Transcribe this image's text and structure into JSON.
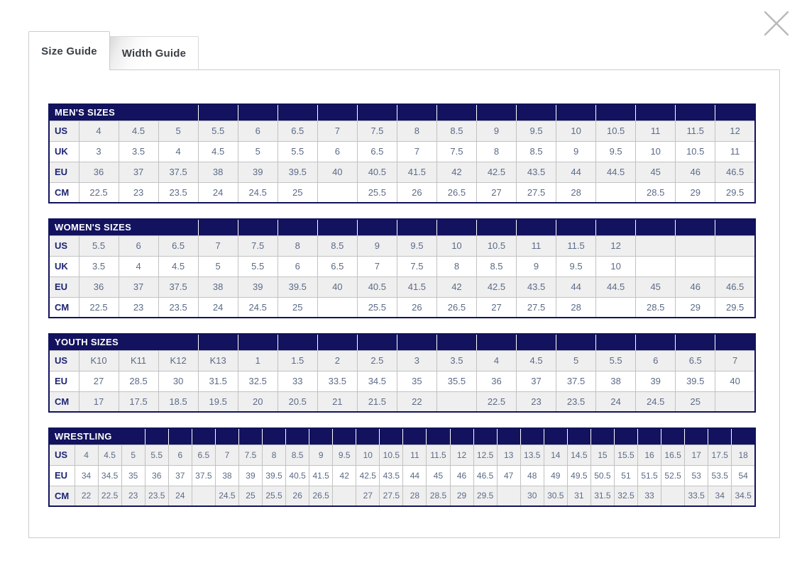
{
  "tabs": [
    {
      "label": "Size Guide",
      "active": true
    },
    {
      "label": "Width Guide",
      "active": false
    }
  ],
  "tables": [
    {
      "id": "mens-sizes",
      "title": "MEN'S SIZES",
      "title_colspan": 4,
      "rows": [
        {
          "label": "US",
          "values": [
            "4",
            "4.5",
            "5",
            "5.5",
            "6",
            "6.5",
            "7",
            "7.5",
            "8",
            "8.5",
            "9",
            "9.5",
            "10",
            "10.5",
            "11",
            "11.5",
            "12"
          ]
        },
        {
          "label": "UK",
          "values": [
            "3",
            "3.5",
            "4",
            "4.5",
            "5",
            "5.5",
            "6",
            "6.5",
            "7",
            "7.5",
            "8",
            "8.5",
            "9",
            "9.5",
            "10",
            "10.5",
            "11"
          ]
        },
        {
          "label": "EU",
          "values": [
            "36",
            "37",
            "37.5",
            "38",
            "39",
            "39.5",
            "40",
            "40.5",
            "41.5",
            "42",
            "42.5",
            "43.5",
            "44",
            "44.5",
            "45",
            "46",
            "46.5"
          ]
        },
        {
          "label": "CM",
          "values": [
            "22.5",
            "23",
            "23.5",
            "24",
            "24.5",
            "25",
            "",
            "25.5",
            "26",
            "26.5",
            "27",
            "27.5",
            "28",
            "",
            "28.5",
            "29",
            "29.5"
          ]
        }
      ]
    },
    {
      "id": "womens-sizes",
      "title": "WOMEN'S SIZES",
      "title_colspan": 4,
      "rows": [
        {
          "label": "US",
          "values": [
            "5.5",
            "6",
            "6.5",
            "7",
            "7.5",
            "8",
            "8.5",
            "9",
            "9.5",
            "10",
            "10.5",
            "11",
            "11.5",
            "12",
            "",
            "",
            ""
          ]
        },
        {
          "label": "UK",
          "values": [
            "3.5",
            "4",
            "4.5",
            "5",
            "5.5",
            "6",
            "6.5",
            "7",
            "7.5",
            "8",
            "8.5",
            "9",
            "9.5",
            "10",
            "",
            "",
            ""
          ]
        },
        {
          "label": "EU",
          "values": [
            "36",
            "37",
            "37.5",
            "38",
            "39",
            "39.5",
            "40",
            "40.5",
            "41.5",
            "42",
            "42.5",
            "43.5",
            "44",
            "44.5",
            "45",
            "46",
            "46.5"
          ]
        },
        {
          "label": "CM",
          "values": [
            "22.5",
            "23",
            "23.5",
            "24",
            "24.5",
            "25",
            "",
            "25.5",
            "26",
            "26.5",
            "27",
            "27.5",
            "28",
            "",
            "28.5",
            "29",
            "29.5"
          ]
        }
      ]
    },
    {
      "id": "youth-sizes",
      "title": "YOUTH SIZES",
      "title_colspan": 4,
      "rows": [
        {
          "label": "US",
          "values": [
            "K10",
            "K11",
            "K12",
            "K13",
            "1",
            "1.5",
            "2",
            "2.5",
            "3",
            "3.5",
            "4",
            "4.5",
            "5",
            "5.5",
            "6",
            "6.5",
            "7"
          ]
        },
        {
          "label": "EU",
          "values": [
            "27",
            "28.5",
            "30",
            "31.5",
            "32.5",
            "33",
            "33.5",
            "34.5",
            "35",
            "35.5",
            "36",
            "37",
            "37.5",
            "38",
            "39",
            "39.5",
            "40"
          ]
        },
        {
          "label": "CM",
          "values": [
            "17",
            "17.5",
            "18.5",
            "19.5",
            "20",
            "20.5",
            "21",
            "21.5",
            "22",
            "",
            "22.5",
            "23",
            "23.5",
            "24",
            "24.5",
            "25",
            ""
          ]
        }
      ]
    },
    {
      "id": "wrestling",
      "title": "WRESTLING",
      "title_colspan": 4,
      "rows": [
        {
          "label": "US",
          "values": [
            "4",
            "4.5",
            "5",
            "5.5",
            "6",
            "6.5",
            "7",
            "7.5",
            "8",
            "8.5",
            "9",
            "9.5",
            "10",
            "10.5",
            "11",
            "11.5",
            "12",
            "12.5",
            "13",
            "13.5",
            "14",
            "14.5",
            "15",
            "15.5",
            "16",
            "16.5",
            "17",
            "17.5",
            "18"
          ]
        },
        {
          "label": "EU",
          "values": [
            "34",
            "34.5",
            "35",
            "36",
            "37",
            "37.5",
            "38",
            "39",
            "39.5",
            "40.5",
            "41.5",
            "42",
            "42.5",
            "43.5",
            "44",
            "45",
            "46",
            "46.5",
            "47",
            "48",
            "49",
            "49.5",
            "50.5",
            "51",
            "51.5",
            "52.5",
            "53",
            "53.5",
            "54"
          ]
        },
        {
          "label": "CM",
          "values": [
            "22",
            "22.5",
            "23",
            "23.5",
            "24",
            "",
            "24.5",
            "25",
            "25.5",
            "26",
            "26.5",
            "",
            "27",
            "27.5",
            "28",
            "28.5",
            "29",
            "29.5",
            "",
            "30",
            "30.5",
            "31",
            "31.5",
            "32.5",
            "33",
            "",
            "33.5",
            "34",
            "34.5"
          ]
        }
      ]
    }
  ],
  "colors": {
    "header_bg": "#12125e",
    "label_text": "#1d2473",
    "value_text": "#5c6b87",
    "row_alt_bg": "#efefef",
    "cell_border": "#c2c2c2",
    "modal_border": "#cccccc",
    "close_icon": "#b9b9b9"
  }
}
